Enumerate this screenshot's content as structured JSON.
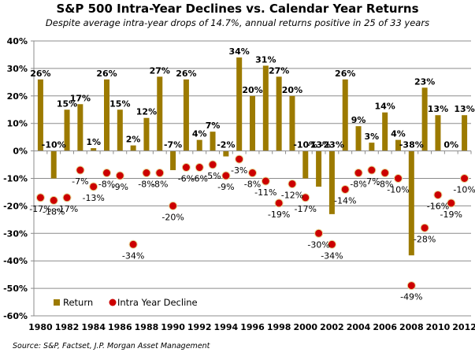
{
  "chart_data": {
    "type": "bar",
    "title": "S&P 500 Intra-Year Declines vs. Calendar Year Returns",
    "subtitle": "Despite average intra-year drops of 14.7%, annual returns positive in 25 of 33 years",
    "source": "Source: S&P, Factset, J.P. Morgan Asset Management",
    "xlabel": "",
    "ylabel": "",
    "ylim": [
      -60,
      40
    ],
    "yticks": [
      40,
      30,
      20,
      10,
      0,
      -10,
      -20,
      -30,
      -40,
      -50,
      -60
    ],
    "ytick_format": "percent",
    "grid": true,
    "legend_position": "bottom-left",
    "categories": [
      1980,
      1981,
      1982,
      1983,
      1984,
      1985,
      1986,
      1987,
      1988,
      1989,
      1990,
      1991,
      1992,
      1993,
      1994,
      1995,
      1996,
      1997,
      1998,
      1999,
      2000,
      2001,
      2002,
      2003,
      2004,
      2005,
      2006,
      2007,
      2008,
      2009,
      2010,
      2011,
      2012
    ],
    "xtick_labels": [
      "1980",
      "1982",
      "1984",
      "1986",
      "1988",
      "1990",
      "1992",
      "1994",
      "1996",
      "1998",
      "2000",
      "2002",
      "2004",
      "2006",
      "2008",
      "2010",
      "2012"
    ],
    "series": [
      {
        "name": "Return",
        "type": "bar",
        "color": "#9C7A00",
        "values": [
          26,
          -10,
          15,
          17,
          1,
          26,
          15,
          2,
          12,
          27,
          -7,
          26,
          4,
          7,
          -2,
          34,
          20,
          31,
          27,
          20,
          -10,
          -13,
          -23,
          26,
          9,
          3,
          14,
          4,
          -38,
          23,
          13,
          0,
          13
        ]
      },
      {
        "name": "Intra Year Decline",
        "type": "scatter",
        "color": "#CC0000",
        "values": [
          -17,
          -18,
          -17,
          -7,
          -13,
          -8,
          -9,
          -34,
          -8,
          -8,
          -20,
          -6,
          -6,
          -5,
          -9,
          -3,
          -8,
          -11,
          -19,
          -12,
          -17,
          -30,
          -34,
          -14,
          -8,
          -7,
          -8,
          -10,
          -49,
          -28,
          -16,
          -19,
          -10
        ]
      }
    ]
  }
}
